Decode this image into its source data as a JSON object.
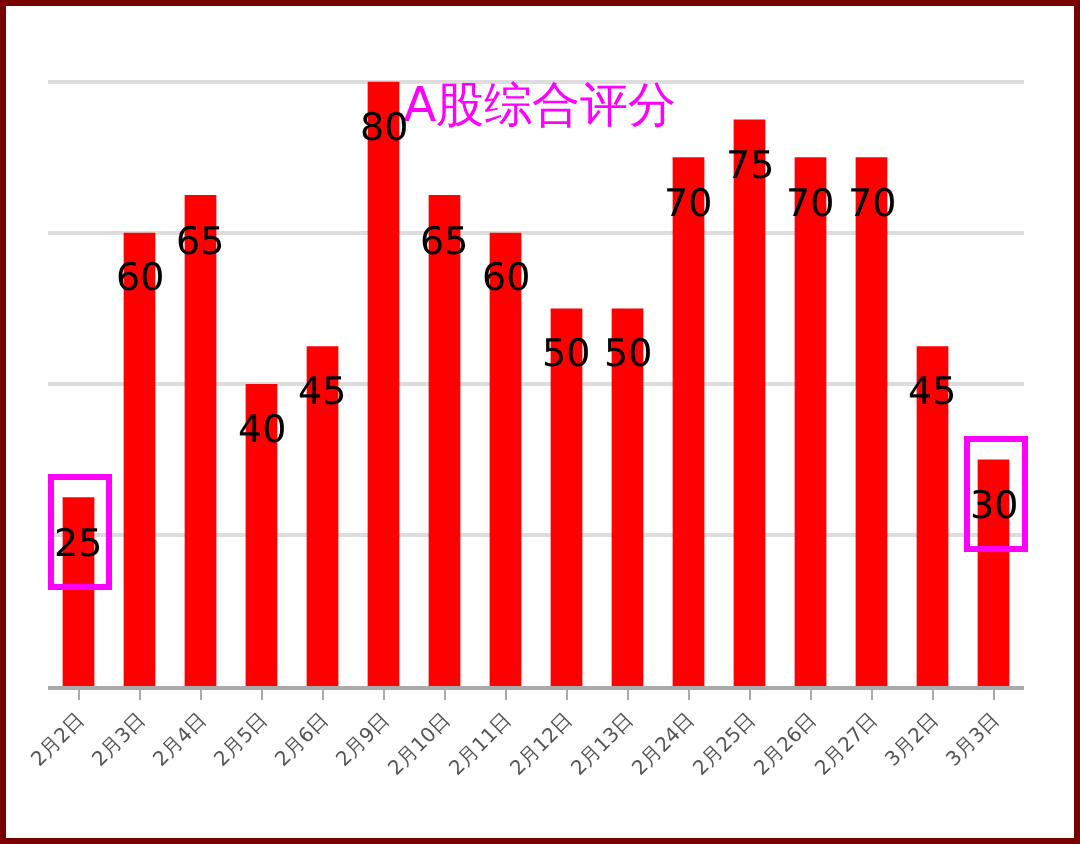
{
  "chart_data": {
    "type": "bar",
    "title": "A股综合评分",
    "categories": [
      "2月2日",
      "2月3日",
      "2月4日",
      "2月5日",
      "2月6日",
      "2月9日",
      "2月10日",
      "2月11日",
      "2月12日",
      "2月13日",
      "2月24日",
      "2月25日",
      "2月26日",
      "2月27日",
      "3月2日",
      "3月3日"
    ],
    "values": [
      25,
      60,
      65,
      40,
      45,
      80,
      65,
      60,
      50,
      50,
      70,
      75,
      70,
      70,
      45,
      30
    ],
    "color": "#ff0000",
    "grid": true,
    "data_labels": true,
    "tick_labels": "x"
  }
}
